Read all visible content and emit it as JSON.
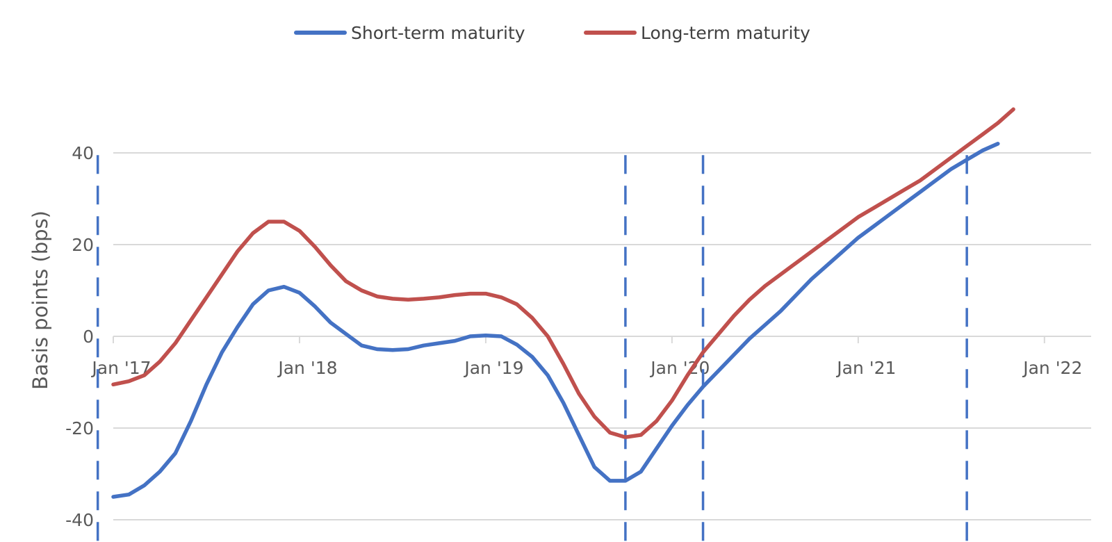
{
  "chart_data": {
    "type": "line",
    "title": "",
    "xlabel": "",
    "ylabel": "Basis points (bps)",
    "ylim": [
      -45,
      45
    ],
    "xlim": [
      "2017-01",
      "2022-04"
    ],
    "grid": "horizontal",
    "legend": {
      "position": "top-center"
    },
    "x_ticks": [
      {
        "x": "2017-01",
        "label": "Jan '17"
      },
      {
        "x": "2018-01",
        "label": "Jan '18"
      },
      {
        "x": "2019-01",
        "label": "Jan '19"
      },
      {
        "x": "2020-01",
        "label": "Jan '20"
      },
      {
        "x": "2021-01",
        "label": "Jan '21"
      },
      {
        "x": "2022-01",
        "label": "Jan '22"
      }
    ],
    "y_ticks": [
      {
        "value": 40,
        "label": "40"
      },
      {
        "value": 20,
        "label": "20"
      },
      {
        "value": 0,
        "label": "0"
      },
      {
        "value": -20,
        "label": "-20"
      },
      {
        "value": -40,
        "label": "-40"
      }
    ],
    "reference_lines": [
      {
        "x": "2016-12",
        "style": "dashed",
        "color": "#4472c4"
      },
      {
        "x": "2019-10",
        "style": "dashed",
        "color": "#4472c4"
      },
      {
        "x": "2020-03",
        "style": "dashed",
        "color": "#4472c4"
      },
      {
        "x": "2021-08",
        "style": "dashed",
        "color": "#4472c4"
      }
    ],
    "series": [
      {
        "name": "Short-term maturity",
        "color": "#4472c4",
        "points": [
          [
            "2017-01",
            -35
          ],
          [
            "2017-02",
            -34.5
          ],
          [
            "2017-03",
            -32.5
          ],
          [
            "2017-04",
            -29.5
          ],
          [
            "2017-05",
            -25.5
          ],
          [
            "2017-06",
            -18.5
          ],
          [
            "2017-07",
            -10.5
          ],
          [
            "2017-08",
            -3.5
          ],
          [
            "2017-09",
            2
          ],
          [
            "2017-10",
            7
          ],
          [
            "2017-11",
            10
          ],
          [
            "2017-12",
            10.8
          ],
          [
            "2018-01",
            9.5
          ],
          [
            "2018-02",
            6.5
          ],
          [
            "2018-03",
            3
          ],
          [
            "2018-04",
            0.5
          ],
          [
            "2018-05",
            -2
          ],
          [
            "2018-06",
            -2.8
          ],
          [
            "2018-07",
            -3
          ],
          [
            "2018-08",
            -2.8
          ],
          [
            "2018-09",
            -2
          ],
          [
            "2018-10",
            -1.5
          ],
          [
            "2018-11",
            -1
          ],
          [
            "2018-12",
            0
          ],
          [
            "2019-01",
            0.2
          ],
          [
            "2019-02",
            0
          ],
          [
            "2019-03",
            -1.8
          ],
          [
            "2019-04",
            -4.5
          ],
          [
            "2019-05",
            -8.5
          ],
          [
            "2019-06",
            -14.5
          ],
          [
            "2019-07",
            -21.5
          ],
          [
            "2019-08",
            -28.5
          ],
          [
            "2019-09",
            -31.5
          ],
          [
            "2019-10",
            -31.5
          ],
          [
            "2019-11",
            -29.5
          ],
          [
            "2019-12",
            -24.5
          ],
          [
            "2020-01",
            -19.5
          ],
          [
            "2020-02",
            -15
          ],
          [
            "2020-03",
            -11
          ],
          [
            "2020-04",
            -7.5
          ],
          [
            "2020-05",
            -4
          ],
          [
            "2020-06",
            -0.5
          ],
          [
            "2020-07",
            2.5
          ],
          [
            "2020-08",
            5.5
          ],
          [
            "2020-09",
            9
          ],
          [
            "2020-10",
            12.5
          ],
          [
            "2020-11",
            15.5
          ],
          [
            "2020-12",
            18.5
          ],
          [
            "2021-01",
            21.5
          ],
          [
            "2021-02",
            24
          ],
          [
            "2021-03",
            26.5
          ],
          [
            "2021-04",
            29
          ],
          [
            "2021-05",
            31.5
          ],
          [
            "2021-06",
            34
          ],
          [
            "2021-07",
            36.5
          ],
          [
            "2021-08",
            38.5
          ],
          [
            "2021-09",
            40.5
          ],
          [
            "2021-10",
            42
          ]
        ]
      },
      {
        "name": "Long-term maturity",
        "color": "#c0504d",
        "points": [
          [
            "2017-01",
            -10.5
          ],
          [
            "2017-02",
            -9.8
          ],
          [
            "2017-03",
            -8.5
          ],
          [
            "2017-04",
            -5.5
          ],
          [
            "2017-05",
            -1.5
          ],
          [
            "2017-06",
            3.5
          ],
          [
            "2017-07",
            8.5
          ],
          [
            "2017-08",
            13.5
          ],
          [
            "2017-09",
            18.5
          ],
          [
            "2017-10",
            22.5
          ],
          [
            "2017-11",
            25
          ],
          [
            "2017-12",
            25
          ],
          [
            "2018-01",
            23
          ],
          [
            "2018-02",
            19.5
          ],
          [
            "2018-03",
            15.5
          ],
          [
            "2018-04",
            12
          ],
          [
            "2018-05",
            10
          ],
          [
            "2018-06",
            8.7
          ],
          [
            "2018-07",
            8.2
          ],
          [
            "2018-08",
            8
          ],
          [
            "2018-09",
            8.2
          ],
          [
            "2018-10",
            8.5
          ],
          [
            "2018-11",
            9
          ],
          [
            "2018-12",
            9.3
          ],
          [
            "2019-01",
            9.3
          ],
          [
            "2019-02",
            8.5
          ],
          [
            "2019-03",
            7
          ],
          [
            "2019-04",
            4
          ],
          [
            "2019-05",
            0
          ],
          [
            "2019-06",
            -6
          ],
          [
            "2019-07",
            -12.5
          ],
          [
            "2019-08",
            -17.5
          ],
          [
            "2019-09",
            -21
          ],
          [
            "2019-10",
            -22
          ],
          [
            "2019-11",
            -21.5
          ],
          [
            "2019-12",
            -18.5
          ],
          [
            "2020-01",
            -14
          ],
          [
            "2020-02",
            -8.5
          ],
          [
            "2020-03",
            -3.5
          ],
          [
            "2020-04",
            0.5
          ],
          [
            "2020-05",
            4.5
          ],
          [
            "2020-06",
            8
          ],
          [
            "2020-07",
            11
          ],
          [
            "2020-08",
            13.5
          ],
          [
            "2020-09",
            16
          ],
          [
            "2020-10",
            18.5
          ],
          [
            "2020-11",
            21
          ],
          [
            "2020-12",
            23.5
          ],
          [
            "2021-01",
            26
          ],
          [
            "2021-02",
            28
          ],
          [
            "2021-03",
            30
          ],
          [
            "2021-04",
            32
          ],
          [
            "2021-05",
            34
          ],
          [
            "2021-06",
            36.5
          ],
          [
            "2021-07",
            39
          ],
          [
            "2021-08",
            41.5
          ],
          [
            "2021-09",
            44
          ],
          [
            "2021-10",
            46.5
          ],
          [
            "2021-11",
            49.5
          ]
        ]
      }
    ]
  }
}
